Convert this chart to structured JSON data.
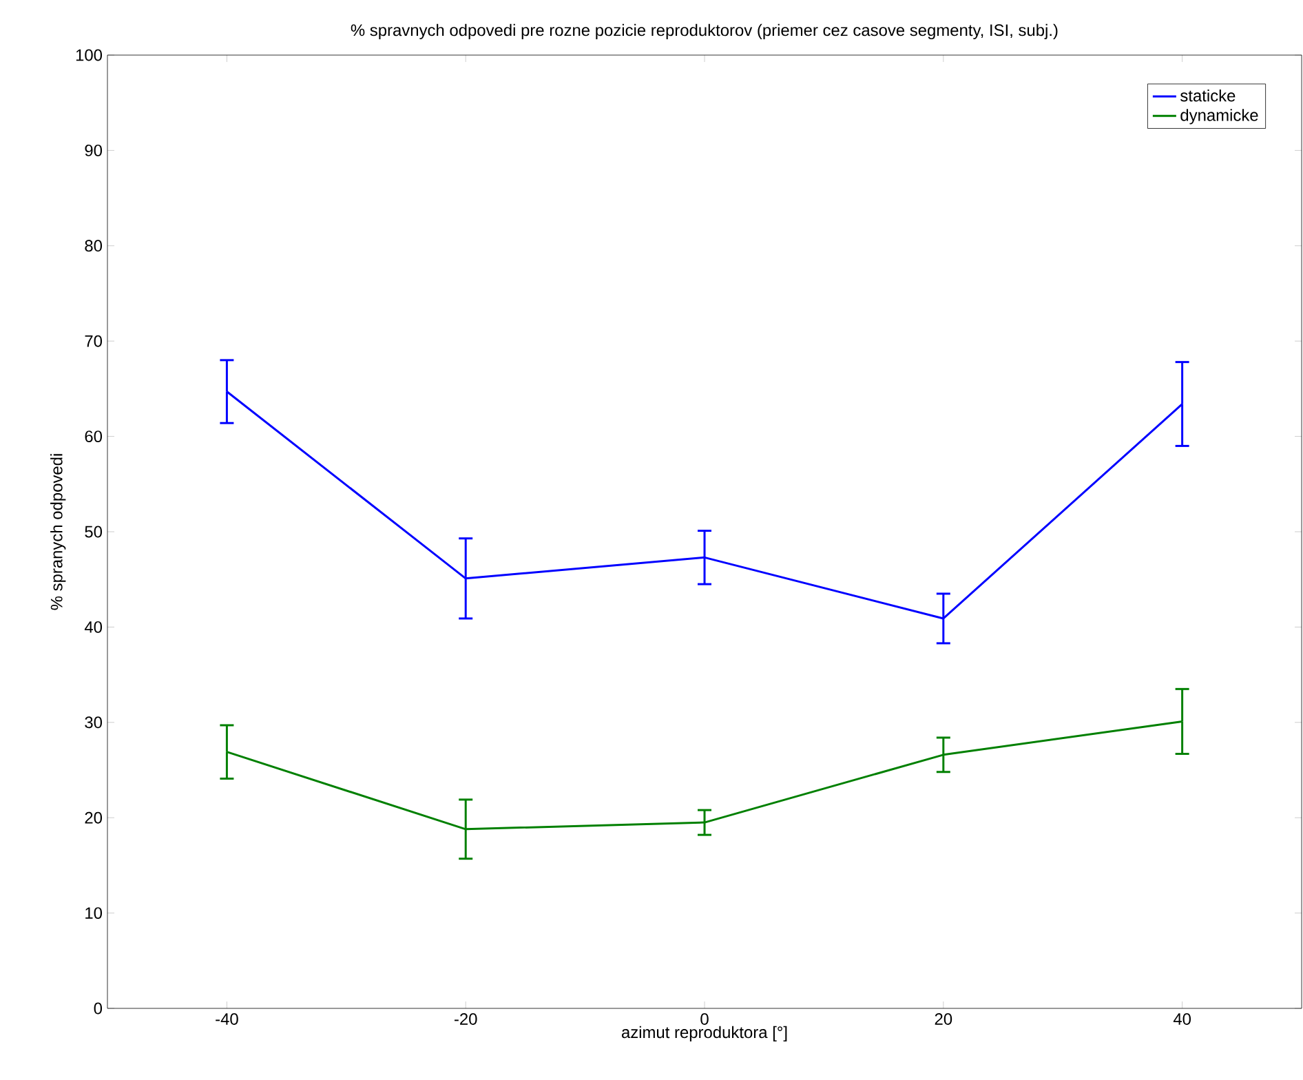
{
  "chart_data": {
    "type": "line",
    "title": "% spravnych odpovedi pre rozne pozicie reproduktorov (priemer cez casove segmenty, ISI, subj.)",
    "xlabel": "azimut reproduktora [°]",
    "ylabel": "% spranych odpovedi",
    "x": [
      -40,
      -20,
      0,
      20,
      40
    ],
    "series": [
      {
        "name": "staticke",
        "color": "#0000ff",
        "values": [
          64.7,
          45.1,
          47.3,
          40.9,
          63.4
        ],
        "errors": [
          3.3,
          4.2,
          2.8,
          2.6,
          4.4
        ]
      },
      {
        "name": "dynamicke",
        "color": "#008000",
        "values": [
          26.9,
          18.8,
          19.5,
          26.6,
          30.1
        ],
        "errors": [
          2.8,
          3.1,
          1.3,
          1.8,
          3.4
        ]
      }
    ],
    "xlim": [
      -50,
      50
    ],
    "ylim": [
      0,
      100
    ],
    "xticks": [
      -40,
      -20,
      0,
      20,
      40
    ],
    "yticks": [
      0,
      10,
      20,
      30,
      40,
      50,
      60,
      70,
      80,
      90,
      100
    ],
    "legend": "top right",
    "grid": false
  }
}
